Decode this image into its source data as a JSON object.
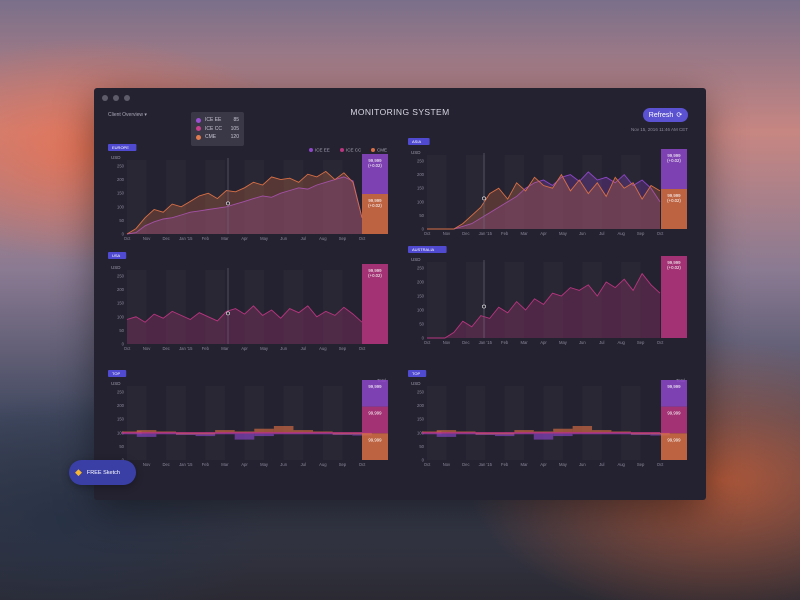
{
  "window": {
    "title": "MONITORING SYSTEM",
    "client_menu": "Client Overview",
    "refresh_label": "Refresh",
    "timestamp": "Nov 15, 2016 11:46 AM CET"
  },
  "tooltip": {
    "rows": [
      {
        "name": "ICE EE",
        "value": "85",
        "color": "#9b4fd1"
      },
      {
        "name": "ICE CC",
        "value": "105",
        "color": "#c8408c"
      },
      {
        "name": "CME",
        "value": "120",
        "color": "#e07b4e"
      }
    ]
  },
  "badge": {
    "label": "FREE Sketch"
  },
  "colors": {
    "ice_ee": "#8e46c9",
    "ice_cc": "#b8357f",
    "cme": "#d86f45"
  },
  "chart_data": [
    {
      "id": "europe",
      "type": "area",
      "region": "EUROPE",
      "ylabel": "USD",
      "yticks": [
        "250",
        "200",
        "150",
        "100",
        "50",
        "0"
      ],
      "ylim": [
        0,
        250
      ],
      "xticks": [
        "Oct",
        "Nov",
        "Dec",
        "Jan '15",
        "Feb",
        "Mar",
        "Apr",
        "May",
        "Jun",
        "Jul",
        "Aug",
        "Sep",
        "Oct"
      ],
      "legend": [
        "ICE EE",
        "ICE CC",
        "CME"
      ],
      "series": [
        {
          "name": "ICE EE",
          "values": [
            0,
            5,
            30,
            45,
            55,
            60,
            70,
            80,
            85,
            90,
            95,
            100,
            110,
            120,
            130,
            140,
            135,
            150,
            160,
            170,
            165,
            180,
            190,
            200,
            210,
            195,
            60
          ]
        },
        {
          "name": "CME",
          "values": [
            0,
            20,
            60,
            90,
            80,
            110,
            100,
            120,
            140,
            150,
            130,
            160,
            155,
            170,
            190,
            180,
            210,
            200,
            205,
            190,
            220,
            210,
            230,
            200,
            225,
            190,
            60
          ]
        }
      ],
      "panel_values": [
        "99,999\n(+0.02)",
        "99,999\n(+0.02)"
      ]
    },
    {
      "id": "asia",
      "type": "area",
      "region": "ASIA",
      "ylabel": "USD",
      "yticks": [
        "250",
        "200",
        "150",
        "100",
        "50",
        "0"
      ],
      "ylim": [
        0,
        250
      ],
      "xticks": [
        "Oct",
        "Nov",
        "Dec",
        "Jan '15",
        "Feb",
        "Mar",
        "Apr",
        "May",
        "Jun",
        "Jul",
        "Aug",
        "Sep",
        "Oct"
      ],
      "series": [
        {
          "name": "ICE EE",
          "values": [
            0,
            0,
            0,
            0,
            10,
            20,
            40,
            60,
            80,
            100,
            120,
            150,
            170,
            180,
            160,
            190,
            200,
            175,
            210,
            180,
            190,
            170,
            200,
            160,
            180,
            150,
            100
          ]
        },
        {
          "name": "CME",
          "values": [
            0,
            0,
            0,
            0,
            20,
            50,
            80,
            130,
            150,
            110,
            170,
            140,
            190,
            160,
            150,
            200,
            140,
            180,
            130,
            170,
            120,
            190,
            150,
            170,
            110,
            160,
            140
          ]
        }
      ],
      "panel_values": [
        "99,999\n(+0.02)",
        "99,999\n(+0.02)"
      ]
    },
    {
      "id": "usa",
      "type": "area",
      "region": "USA",
      "ylabel": "USD",
      "yticks": [
        "250",
        "200",
        "150",
        "100",
        "50",
        "0"
      ],
      "ylim": [
        0,
        250
      ],
      "xticks": [
        "Oct",
        "Nov",
        "Dec",
        "Jan '15",
        "Feb",
        "Mar",
        "Apr",
        "May",
        "Jun",
        "Jul",
        "Aug",
        "Sep",
        "Oct"
      ],
      "series": [
        {
          "name": "ICE CC",
          "values": [
            90,
            100,
            80,
            110,
            95,
            120,
            105,
            90,
            115,
            100,
            85,
            120,
            130,
            110,
            140,
            105,
            125,
            95,
            130,
            115,
            140,
            100,
            120,
            105,
            135,
            110,
            80
          ]
        }
      ],
      "panel_values": [
        "99,999\n(+0.02)"
      ]
    },
    {
      "id": "australia",
      "type": "area",
      "region": "AUSTRALIA",
      "ylabel": "USD",
      "yticks": [
        "250",
        "200",
        "150",
        "100",
        "50",
        "0"
      ],
      "ylim": [
        0,
        250
      ],
      "xticks": [
        "Oct",
        "Nov",
        "Dec",
        "Jan '15",
        "Feb",
        "Mar",
        "Apr",
        "May",
        "Jun",
        "Jul",
        "Aug",
        "Sep",
        "Oct"
      ],
      "series": [
        {
          "name": "ICE CC",
          "values": [
            0,
            0,
            0,
            20,
            60,
            40,
            80,
            70,
            110,
            90,
            130,
            100,
            140,
            120,
            160,
            150,
            180,
            170,
            190,
            150,
            200,
            180,
            210,
            170,
            230,
            190,
            160
          ]
        }
      ],
      "panel_values": [
        "99,999\n(+0.02)"
      ]
    },
    {
      "id": "top_left",
      "type": "bar",
      "region": "TOP",
      "ylabel": "USD",
      "total_label": "Total",
      "yticks": [
        "250",
        "200",
        "150",
        "100",
        "50",
        "0"
      ],
      "ylim": [
        0,
        250
      ],
      "xticks": [
        "Oct",
        "Nov",
        "Dec",
        "Jan '15",
        "Feb",
        "Mar",
        "Apr",
        "May",
        "Jun",
        "Jul",
        "Aug",
        "Sep",
        "Oct"
      ],
      "series": [
        {
          "name": "ICE EE",
          "values": [
            -5,
            -15,
            -5,
            -8,
            -12,
            -5,
            -25,
            -12,
            -5,
            0,
            -5,
            -8,
            -10
          ]
        },
        {
          "name": "CME",
          "values": [
            5,
            10,
            5,
            0,
            -5,
            10,
            5,
            15,
            25,
            10,
            5,
            0,
            0
          ]
        }
      ],
      "panel_values": [
        "99,999",
        "99,999",
        "99,999"
      ]
    },
    {
      "id": "top_right",
      "type": "bar",
      "region": "TOP",
      "ylabel": "USD",
      "total_label": "Total",
      "yticks": [
        "250",
        "200",
        "150",
        "100",
        "50",
        "0"
      ],
      "ylim": [
        0,
        250
      ],
      "xticks": [
        "Oct",
        "Nov",
        "Dec",
        "Jan '15",
        "Feb",
        "Mar",
        "Apr",
        "May",
        "Jun",
        "Jul",
        "Aug",
        "Sep",
        "Oct"
      ],
      "series": [
        {
          "name": "ICE EE",
          "values": [
            -5,
            -15,
            -5,
            -8,
            -12,
            -5,
            -25,
            -12,
            -5,
            0,
            -5,
            -8,
            -10
          ]
        },
        {
          "name": "CME",
          "values": [
            5,
            10,
            5,
            0,
            -5,
            10,
            5,
            15,
            25,
            10,
            5,
            0,
            0
          ]
        }
      ],
      "panel_values": [
        "99,999",
        "99,999",
        "99,999"
      ]
    }
  ]
}
